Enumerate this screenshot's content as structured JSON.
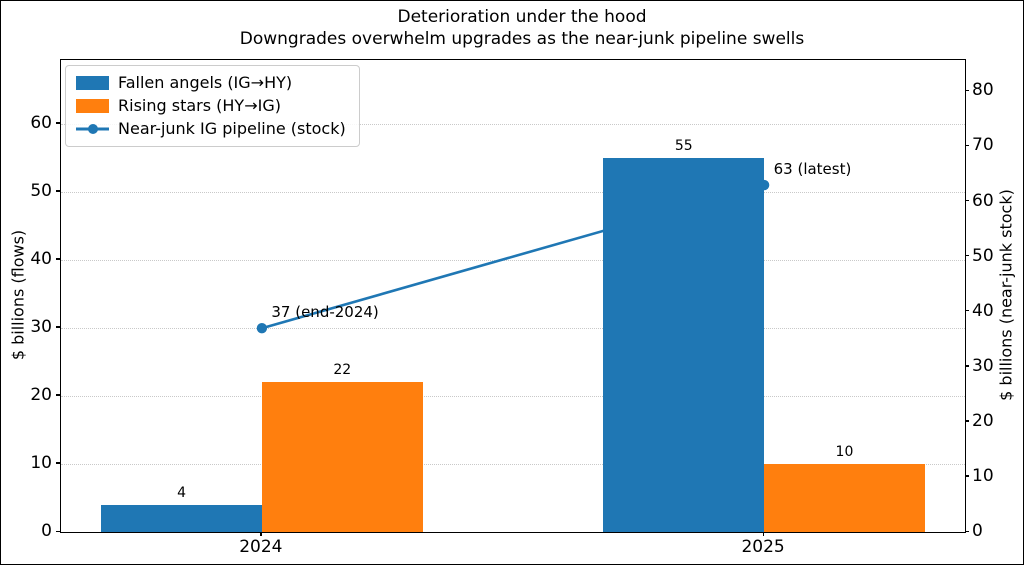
{
  "title": {
    "line1": "Deterioration under the hood",
    "line2": "Downgrades overwhelm upgrades as the near-junk pipeline swells"
  },
  "chart_data": {
    "type": "bar",
    "combo": "grouped bars on left axis + line with circle markers on right axis",
    "categories": [
      "2024",
      "2025"
    ],
    "series": [
      {
        "name": "Fallen angels (IG→HY)",
        "kind": "bar",
        "axis": "left",
        "color": "#1f77b4",
        "values": [
          4,
          55
        ]
      },
      {
        "name": "Rising stars (HY→IG)",
        "kind": "bar",
        "axis": "left",
        "color": "#ff7f0e",
        "values": [
          22,
          10
        ]
      },
      {
        "name": "Near-junk IG pipeline (stock)",
        "kind": "line",
        "axis": "right",
        "color": "#1f77b4",
        "values": [
          37,
          63
        ]
      }
    ],
    "annotations": [
      {
        "text": "37 (end-2024)",
        "x": 0,
        "value": 37,
        "axis": "right"
      },
      {
        "text": "63 (latest)",
        "x": 1,
        "value": 63,
        "axis": "right"
      }
    ],
    "ylabel_left": "$ billions (flows)",
    "ylabel_right": "$ billions (near-junk stock)",
    "yticks_left": [
      0,
      10,
      20,
      30,
      40,
      50,
      60
    ],
    "yticks_right": [
      0,
      10,
      20,
      30,
      40,
      50,
      60,
      70,
      80
    ],
    "ylim_left": [
      0,
      69.4
    ],
    "ylim_right": [
      0,
      85.7
    ],
    "xlim": [
      -0.4,
      1.4
    ],
    "bar_width": 0.32,
    "grid": {
      "axis": "y",
      "ticks": "left",
      "style": "dotted",
      "color": "#c9c9c9",
      "on": true
    },
    "legend_position": "upper left",
    "colors": {
      "blue": "#1f77b4",
      "orange": "#ff7f0e",
      "background": "#ffffff",
      "spine": "#000000",
      "text": "#000000"
    }
  }
}
